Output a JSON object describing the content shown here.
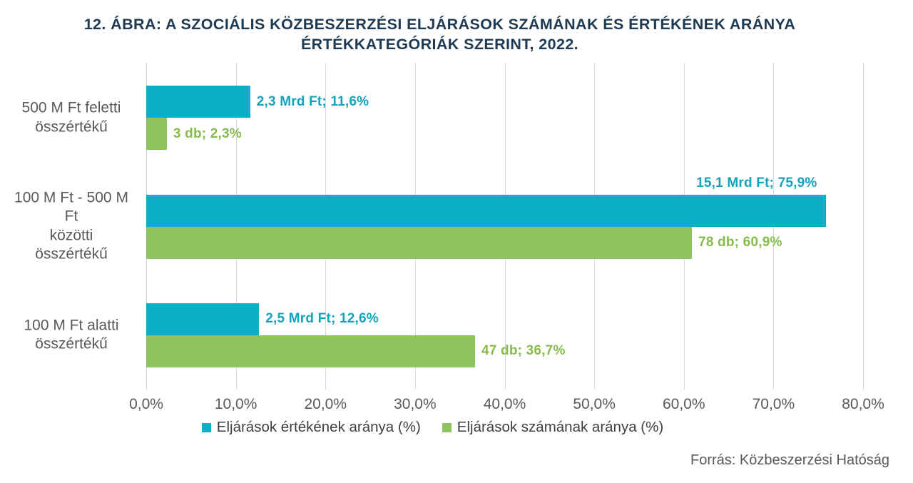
{
  "title": "12. ÁBRA: A SZOCIÁLIS KÖZBESZERZÉSI ELJÁRÁSOK SZÁMÁNAK ÉS ÉRTÉKÉNEK ARÁNYA\nÉRTÉKKATEGÓRIÁK SZERINT, 2022.",
  "source": "Forrás: Közbeszerzési Hatóság",
  "colors": {
    "value_series": "#0caec8",
    "value_series_label": "#14a3bc",
    "count_series": "#8ec35f",
    "count_series_label": "#86bc4e",
    "title_text": "#1e3a52",
    "axis_text": "#595959",
    "legend_text": "#3f3f3f",
    "gridline": "#d9d9d9",
    "background": "#ffffff"
  },
  "chart_data": {
    "type": "bar",
    "orientation": "horizontal",
    "title": "12. ÁBRA: A SZOCIÁLIS KÖZBESZERZÉSI ELJÁRÁSOK SZÁMÁNAK ÉS ÉRTÉKÉNEK ARÁNYA ÉRTÉKKATEGÓRIÁK SZERINT, 2022.",
    "categories": [
      "500 M Ft feletti\nösszértékű",
      "100 M Ft - 500 M\nFt\nközötti\nösszértékű",
      "100 M Ft alatti\nösszértékű"
    ],
    "series": [
      {
        "name": "Eljárások értékének aránya (%)",
        "color": "#0caec8",
        "label_color": "#14a3bc",
        "values": [
          11.6,
          75.9,
          12.6
        ],
        "data_labels": [
          "2,3 Mrd Ft; 11,6%",
          "15,1 Mrd Ft; 75,9%",
          "2,5 Mrd Ft; 12,6%"
        ],
        "label_placement": [
          "right",
          "above",
          "right"
        ]
      },
      {
        "name": "Eljárások számának aránya (%)",
        "color": "#8ec35f",
        "label_color": "#86bc4e",
        "values": [
          2.3,
          60.9,
          36.7
        ],
        "data_labels": [
          "3 db; 2,3%",
          "78 db; 60,9%",
          "47 db; 36,7%"
        ],
        "label_placement": [
          "right",
          "right",
          "right"
        ]
      }
    ],
    "x_axis": {
      "min": 0,
      "max": 80,
      "tick_step": 10,
      "tick_labels": [
        "0,0%",
        "10,0%",
        "20,0%",
        "30,0%",
        "40,0%",
        "50,0%",
        "60,0%",
        "70,0%",
        "80,0%"
      ]
    },
    "grid": true,
    "legend_position": "bottom"
  }
}
